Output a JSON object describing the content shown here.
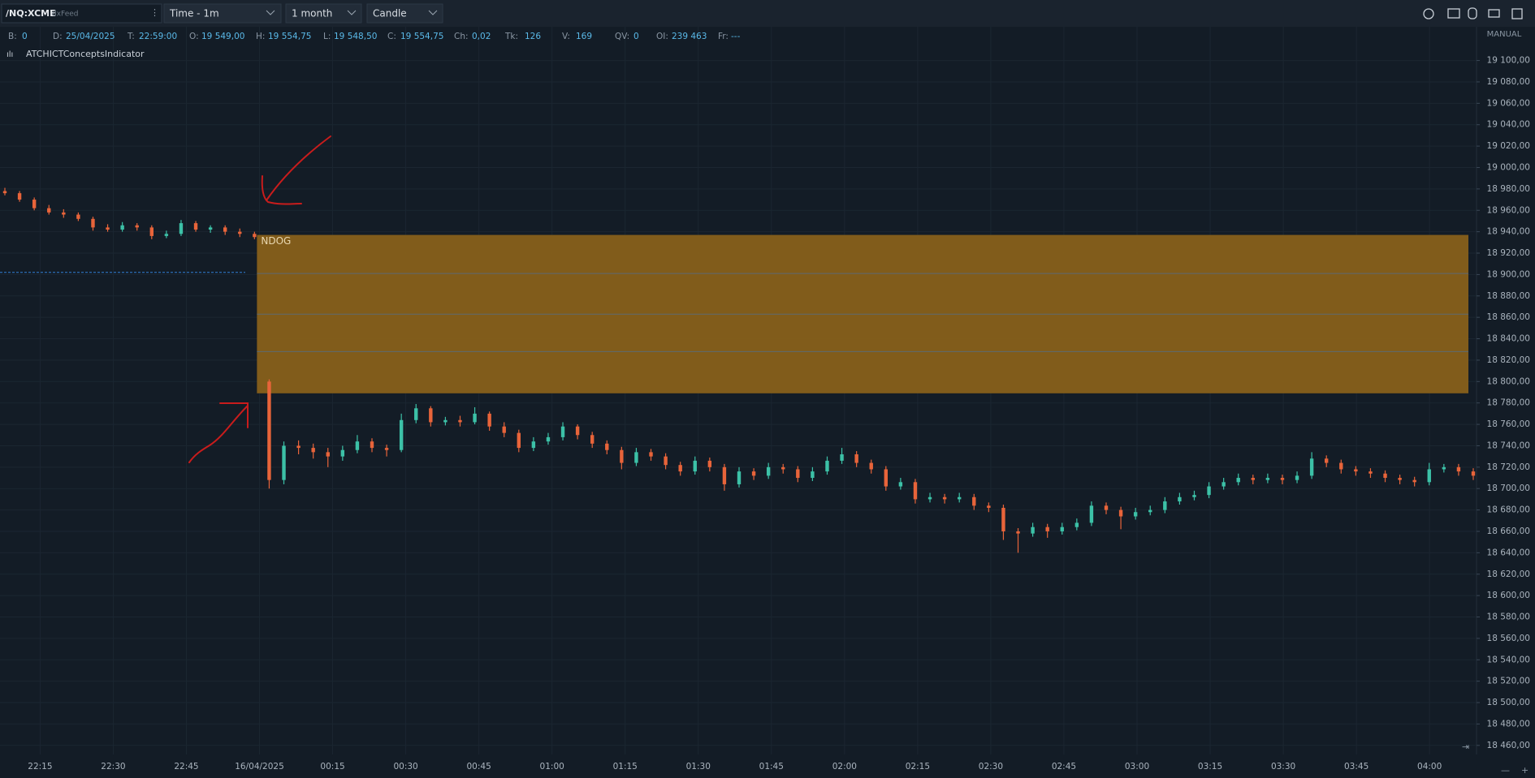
{
  "toolbar": {
    "symbol": "/NQ:XCME",
    "feed": "dxFeed",
    "interval": "Time - 1m",
    "range": "1 month",
    "style": "Candle"
  },
  "info": [
    {
      "label": "B:",
      "value": "0"
    },
    {
      "label": "D:",
      "value": "25/04/2025"
    },
    {
      "label": "T:",
      "value": "22:59:00"
    },
    {
      "label": "O:",
      "value": "19 549,00"
    },
    {
      "label": "H:",
      "value": "19 554,75"
    },
    {
      "label": "L:",
      "value": "19 548,50"
    },
    {
      "label": "C:",
      "value": "19 554,75"
    },
    {
      "label": "Ch:",
      "value": "0,02"
    },
    {
      "label": "Tk:",
      "value": "126"
    },
    {
      "label": "V:",
      "value": "169"
    },
    {
      "label": "QV:",
      "value": "0"
    },
    {
      "label": "OI:",
      "value": "239 463"
    },
    {
      "label": "Fr:",
      "value": "---"
    }
  ],
  "indicator": "ATCHICTConceptsIndicator",
  "scale_mode": "MANUAL",
  "chart_data": {
    "type": "candlestick",
    "up_color": "#3cc1a7",
    "down_color": "#e8643a",
    "grid": true,
    "ylim": [
      18450,
      19130
    ],
    "yticks": [
      {
        "value": 19100,
        "label": "19 100,00"
      },
      {
        "value": 19080,
        "label": "19 080,00"
      },
      {
        "value": 19060,
        "label": "19 060,00"
      },
      {
        "value": 19040,
        "label": "19 040,00"
      },
      {
        "value": 19020,
        "label": "19 020,00"
      },
      {
        "value": 19000,
        "label": "19 000,00"
      },
      {
        "value": 18980,
        "label": "18 980,00"
      },
      {
        "value": 18960,
        "label": "18 960,00"
      },
      {
        "value": 18940,
        "label": "18 940,00"
      },
      {
        "value": 18920,
        "label": "18 920,00"
      },
      {
        "value": 18900,
        "label": "18 900,00"
      },
      {
        "value": 18880,
        "label": "18 880,00"
      },
      {
        "value": 18860,
        "label": "18 860,00"
      },
      {
        "value": 18840,
        "label": "18 840,00"
      },
      {
        "value": 18820,
        "label": "18 820,00"
      },
      {
        "value": 18800,
        "label": "18 800,00"
      },
      {
        "value": 18780,
        "label": "18 780,00"
      },
      {
        "value": 18760,
        "label": "18 760,00"
      },
      {
        "value": 18740,
        "label": "18 740,00"
      },
      {
        "value": 18720,
        "label": "18 720,00"
      },
      {
        "value": 18700,
        "label": "18 700,00"
      },
      {
        "value": 18680,
        "label": "18 680,00"
      },
      {
        "value": 18660,
        "label": "18 660,00"
      },
      {
        "value": 18640,
        "label": "18 640,00"
      },
      {
        "value": 18620,
        "label": "18 620,00"
      },
      {
        "value": 18600,
        "label": "18 600,00"
      },
      {
        "value": 18580,
        "label": "18 580,00"
      },
      {
        "value": 18560,
        "label": "18 560,00"
      },
      {
        "value": 18540,
        "label": "18 540,00"
      },
      {
        "value": 18520,
        "label": "18 520,00"
      },
      {
        "value": 18500,
        "label": "18 500,00"
      },
      {
        "value": 18480,
        "label": "18 480,00"
      },
      {
        "value": 18460,
        "label": "18 460,00"
      }
    ],
    "x_labels": [
      "22:15",
      "22:30",
      "22:45",
      "16/04/2025",
      "00:15",
      "00:30",
      "00:45",
      "01:00",
      "01:15",
      "01:30",
      "01:45",
      "02:00",
      "02:15",
      "02:30",
      "02:45",
      "03:00",
      "03:15",
      "03:30",
      "03:45",
      "04:00"
    ],
    "zone": {
      "label": "NDOG",
      "top": 18937,
      "bottom": 18789,
      "levels": [
        18901,
        18863,
        18828
      ],
      "color": "#87601a"
    },
    "level": {
      "value": 18902,
      "color": "#2f7fd6"
    },
    "candles": [
      [
        18978,
        18981,
        18974,
        18976
      ],
      [
        18976,
        18978,
        18968,
        18970
      ],
      [
        18970,
        18972,
        18960,
        18962
      ],
      [
        18962,
        18965,
        18956,
        18958
      ],
      [
        18958,
        18961,
        18953,
        18956
      ],
      [
        18956,
        18958,
        18950,
        18952
      ],
      [
        18952,
        18954,
        18941,
        18944
      ],
      [
        18944,
        18947,
        18940,
        18942
      ],
      [
        18942,
        18949,
        18940,
        18946
      ],
      [
        18946,
        18948,
        18941,
        18944
      ],
      [
        18944,
        18946,
        18933,
        18936
      ],
      [
        18936,
        18941,
        18934,
        18938
      ],
      [
        18938,
        18951,
        18936,
        18948
      ],
      [
        18948,
        18950,
        18940,
        18942
      ],
      [
        18942,
        18946,
        18939,
        18944
      ],
      [
        18944,
        18946,
        18937,
        18940
      ],
      [
        18940,
        18943,
        18935,
        18938
      ],
      [
        18938,
        18940,
        18933,
        18935
      ],
      [
        18800,
        18802,
        18700,
        18708
      ],
      [
        18708,
        18744,
        18704,
        18740
      ],
      [
        18740,
        18745,
        18732,
        18738
      ],
      [
        18738,
        18742,
        18728,
        18734
      ],
      [
        18734,
        18738,
        18720,
        18730
      ],
      [
        18730,
        18740,
        18726,
        18736
      ],
      [
        18736,
        18750,
        18733,
        18744
      ],
      [
        18744,
        18747,
        18734,
        18738
      ],
      [
        18738,
        18741,
        18730,
        18736
      ],
      [
        18736,
        18770,
        18734,
        18764
      ],
      [
        18764,
        18779,
        18761,
        18775
      ],
      [
        18775,
        18777,
        18758,
        18762
      ],
      [
        18762,
        18767,
        18759,
        18764
      ],
      [
        18764,
        18768,
        18758,
        18762
      ],
      [
        18762,
        18776,
        18760,
        18770
      ],
      [
        18770,
        18772,
        18754,
        18758
      ],
      [
        18758,
        18762,
        18748,
        18752
      ],
      [
        18752,
        18755,
        18734,
        18738
      ],
      [
        18738,
        18748,
        18735,
        18744
      ],
      [
        18744,
        18752,
        18741,
        18748
      ],
      [
        18748,
        18762,
        18745,
        18758
      ],
      [
        18758,
        18760,
        18746,
        18750
      ],
      [
        18750,
        18753,
        18738,
        18742
      ],
      [
        18742,
        18745,
        18732,
        18736
      ],
      [
        18736,
        18739,
        18718,
        18724
      ],
      [
        18724,
        18738,
        18721,
        18734
      ],
      [
        18734,
        18737,
        18726,
        18730
      ],
      [
        18730,
        18733,
        18718,
        18722
      ],
      [
        18722,
        18725,
        18712,
        18716
      ],
      [
        18716,
        18730,
        18713,
        18726
      ],
      [
        18726,
        18729,
        18716,
        18720
      ],
      [
        18720,
        18723,
        18698,
        18704
      ],
      [
        18704,
        18720,
        18701,
        18716
      ],
      [
        18716,
        18719,
        18708,
        18712
      ],
      [
        18712,
        18724,
        18709,
        18720
      ],
      [
        18720,
        18723,
        18714,
        18718
      ],
      [
        18718,
        18721,
        18706,
        18710
      ],
      [
        18710,
        18720,
        18707,
        18716
      ],
      [
        18716,
        18730,
        18713,
        18726
      ],
      [
        18726,
        18738,
        18723,
        18732
      ],
      [
        18732,
        18735,
        18720,
        18724
      ],
      [
        18724,
        18727,
        18714,
        18718
      ],
      [
        18718,
        18721,
        18698,
        18702
      ],
      [
        18702,
        18710,
        18699,
        18706
      ],
      [
        18706,
        18709,
        18686,
        18690
      ],
      [
        18690,
        18696,
        18687,
        18692
      ],
      [
        18692,
        18695,
        18686,
        18690
      ],
      [
        18690,
        18696,
        18687,
        18692
      ],
      [
        18692,
        18695,
        18680,
        18684
      ],
      [
        18684,
        18687,
        18678,
        18682
      ],
      [
        18682,
        18685,
        18652,
        18660
      ],
      [
        18660,
        18663,
        18640,
        18658
      ],
      [
        18658,
        18668,
        18655,
        18664
      ],
      [
        18664,
        18667,
        18654,
        18660
      ],
      [
        18660,
        18668,
        18657,
        18664
      ],
      [
        18664,
        18672,
        18661,
        18668
      ],
      [
        18668,
        18688,
        18665,
        18684
      ],
      [
        18684,
        18687,
        18676,
        18680
      ],
      [
        18680,
        18683,
        18662,
        18674
      ],
      [
        18674,
        18682,
        18671,
        18678
      ],
      [
        18678,
        18684,
        18675,
        18680
      ],
      [
        18680,
        18692,
        18677,
        18688
      ],
      [
        18688,
        18696,
        18685,
        18692
      ],
      [
        18692,
        18698,
        18689,
        18694
      ],
      [
        18694,
        18706,
        18691,
        18702
      ],
      [
        18702,
        18710,
        18699,
        18706
      ],
      [
        18706,
        18714,
        18703,
        18710
      ],
      [
        18710,
        18713,
        18704,
        18708
      ],
      [
        18708,
        18714,
        18705,
        18710
      ],
      [
        18710,
        18713,
        18704,
        18708
      ],
      [
        18708,
        18716,
        18705,
        18712
      ],
      [
        18712,
        18734,
        18709,
        18728
      ],
      [
        18728,
        18731,
        18720,
        18724
      ],
      [
        18724,
        18727,
        18714,
        18718
      ],
      [
        18718,
        18721,
        18712,
        18716
      ],
      [
        18716,
        18719,
        18710,
        18714
      ],
      [
        18714,
        18717,
        18706,
        18710
      ],
      [
        18710,
        18713,
        18704,
        18708
      ],
      [
        18708,
        18711,
        18702,
        18706
      ],
      [
        18706,
        18724,
        18703,
        18718
      ],
      [
        18718,
        18723,
        18715,
        18720
      ],
      [
        18720,
        18723,
        18712,
        18716
      ],
      [
        18716,
        18719,
        18708,
        18712
      ]
    ]
  }
}
